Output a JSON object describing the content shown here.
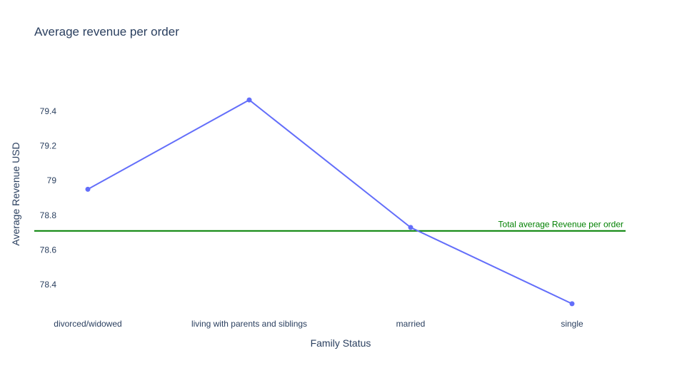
{
  "chart_data": {
    "type": "line",
    "title": "Average revenue per order",
    "xlabel": "Family Status",
    "ylabel": "Average Revenue USD",
    "categories": [
      "divorced/widowed",
      "living with parents and siblings",
      "married",
      "single"
    ],
    "series": [
      {
        "values": [
          78.95,
          79.465,
          78.73,
          78.29
        ],
        "color": "#636efa"
      }
    ],
    "reference_line": {
      "label": "Total average Revenue per order",
      "value": 78.71,
      "color": "#008000"
    },
    "ylim": [
      78.24,
      79.63
    ],
    "yticks": [
      {
        "value": 78.4,
        "label": "78.4"
      },
      {
        "value": 78.6,
        "label": "78.6"
      },
      {
        "value": 78.8,
        "label": "78.8"
      },
      {
        "value": 79.0,
        "label": "79"
      },
      {
        "value": 79.2,
        "label": "79.2"
      },
      {
        "value": 79.4,
        "label": "79.4"
      }
    ],
    "grid": false,
    "legend": "none"
  }
}
